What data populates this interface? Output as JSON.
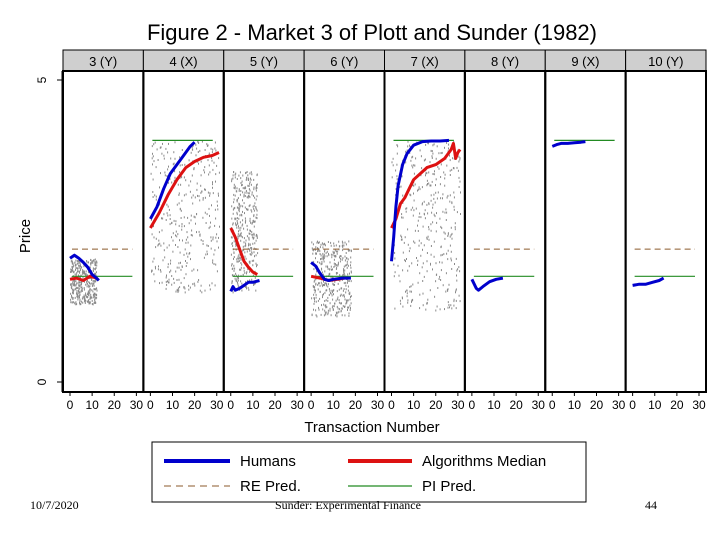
{
  "chart_data": {
    "type": "line",
    "title": "Figure 2 - Market 3 of Plott and Sunder (1982)",
    "xlabel": "Transaction Number",
    "ylabel": "Price",
    "ylim": [
      0,
      5
    ],
    "y_ticks": [
      "0",
      "5"
    ],
    "x_ticks": [
      "0",
      "10",
      "20",
      "30"
    ],
    "xlim": [
      0,
      30
    ],
    "grid": false,
    "legend_position": "bottom",
    "legend": [
      {
        "key": "humans",
        "label": "Humans",
        "color": "#0000cc",
        "style": "solid-thick"
      },
      {
        "key": "algorithms",
        "label": "Algorithms Median",
        "color": "#dd1111",
        "style": "solid-thick"
      },
      {
        "key": "re",
        "label": "RE Pred.",
        "color": "#8b5a2b",
        "style": "dashed"
      },
      {
        "key": "pi",
        "label": "PI Pred.",
        "color": "#228b22",
        "style": "solid-thin"
      }
    ],
    "panels": [
      {
        "label": "3 (Y)",
        "re_pred": 2.2,
        "pi_pred": 1.75,
        "humans": [
          [
            0,
            2.05
          ],
          [
            2,
            2.1
          ],
          [
            4,
            2.05
          ],
          [
            6,
            1.98
          ],
          [
            8,
            1.9
          ],
          [
            10,
            1.78
          ],
          [
            12,
            1.72
          ],
          [
            13,
            1.68
          ]
        ],
        "algorithms": [
          [
            0,
            1.7
          ],
          [
            3,
            1.72
          ],
          [
            6,
            1.68
          ],
          [
            9,
            1.75
          ],
          [
            12,
            1.72
          ]
        ],
        "cloud": [
          0,
          12,
          1.3,
          2.05
        ]
      },
      {
        "label": "4 (X)",
        "re_pred": null,
        "pi_pred": 4.0,
        "humans": [
          [
            0,
            2.7
          ],
          [
            3,
            2.9
          ],
          [
            6,
            3.2
          ],
          [
            9,
            3.45
          ],
          [
            12,
            3.6
          ],
          [
            15,
            3.75
          ],
          [
            18,
            3.9
          ],
          [
            20,
            3.97
          ]
        ],
        "algorithms": [
          [
            0,
            2.55
          ],
          [
            4,
            2.8
          ],
          [
            8,
            3.1
          ],
          [
            12,
            3.35
          ],
          [
            16,
            3.55
          ],
          [
            20,
            3.65
          ],
          [
            24,
            3.72
          ],
          [
            28,
            3.75
          ],
          [
            31,
            3.8
          ]
        ],
        "cloud": [
          0,
          31,
          1.5,
          4.0
        ]
      },
      {
        "label": "5 (Y)",
        "re_pred": 2.2,
        "pi_pred": 1.75,
        "humans": [
          [
            0,
            1.5
          ],
          [
            1,
            1.58
          ],
          [
            2,
            1.52
          ],
          [
            4,
            1.55
          ],
          [
            6,
            1.6
          ],
          [
            8,
            1.65
          ],
          [
            10,
            1.65
          ],
          [
            13,
            1.68
          ]
        ],
        "algorithms": [
          [
            0,
            2.55
          ],
          [
            2,
            2.4
          ],
          [
            4,
            2.2
          ],
          [
            6,
            2.0
          ],
          [
            8,
            1.9
          ],
          [
            10,
            1.82
          ],
          [
            12,
            1.78
          ]
        ],
        "cloud": [
          0,
          12,
          1.5,
          3.5
        ]
      },
      {
        "label": "6 (Y)",
        "re_pred": 2.2,
        "pi_pred": 1.75,
        "humans": [
          [
            0,
            1.98
          ],
          [
            2,
            1.92
          ],
          [
            4,
            1.8
          ],
          [
            6,
            1.7
          ],
          [
            8,
            1.68
          ],
          [
            10,
            1.7
          ],
          [
            14,
            1.72
          ],
          [
            18,
            1.72
          ]
        ],
        "algorithms": [
          [
            0,
            1.75
          ],
          [
            4,
            1.72
          ],
          [
            8,
            1.68
          ],
          [
            12,
            1.7
          ],
          [
            15,
            1.72
          ]
        ],
        "cloud": [
          0,
          18,
          1.1,
          2.35
        ]
      },
      {
        "label": "7 (X)",
        "re_pred": null,
        "pi_pred": 4.0,
        "humans": [
          [
            0,
            2.0
          ],
          [
            1,
            2.4
          ],
          [
            2,
            2.9
          ],
          [
            3,
            3.25
          ],
          [
            5,
            3.6
          ],
          [
            7,
            3.78
          ],
          [
            10,
            3.92
          ],
          [
            14,
            3.98
          ],
          [
            18,
            3.99
          ],
          [
            22,
            3.99
          ],
          [
            26,
            4.0
          ]
        ],
        "algorithms": [
          [
            0,
            2.55
          ],
          [
            2,
            2.7
          ],
          [
            4,
            2.95
          ],
          [
            6,
            3.05
          ],
          [
            8,
            3.2
          ],
          [
            10,
            3.35
          ],
          [
            13,
            3.45
          ],
          [
            16,
            3.55
          ],
          [
            20,
            3.6
          ],
          [
            24,
            3.7
          ],
          [
            27,
            3.85
          ],
          [
            28,
            3.95
          ],
          [
            29,
            3.7
          ],
          [
            30,
            3.8
          ],
          [
            31,
            3.85
          ]
        ],
        "cloud": [
          0,
          31,
          1.2,
          4.0
        ]
      },
      {
        "label": "8 (Y)",
        "re_pred": 2.2,
        "pi_pred": 1.75,
        "humans": [
          [
            0,
            1.7
          ],
          [
            2,
            1.55
          ],
          [
            3,
            1.52
          ],
          [
            5,
            1.58
          ],
          [
            8,
            1.66
          ],
          [
            11,
            1.7
          ],
          [
            14,
            1.72
          ]
        ],
        "algorithms": [],
        "cloud": null
      },
      {
        "label": "9 (X)",
        "re_pred": null,
        "pi_pred": 4.0,
        "humans": [
          [
            0,
            3.9
          ],
          [
            2,
            3.93
          ],
          [
            4,
            3.95
          ],
          [
            7,
            3.95
          ],
          [
            10,
            3.96
          ],
          [
            13,
            3.97
          ],
          [
            15,
            3.98
          ]
        ],
        "algorithms": [],
        "cloud": null
      },
      {
        "label": "10 (Y)",
        "re_pred": 2.2,
        "pi_pred": 1.75,
        "humans": [
          [
            0,
            1.6
          ],
          [
            3,
            1.62
          ],
          [
            6,
            1.62
          ],
          [
            9,
            1.65
          ],
          [
            12,
            1.68
          ],
          [
            14,
            1.72
          ]
        ],
        "algorithms": [],
        "cloud": null
      }
    ]
  },
  "footer": {
    "date": "10/7/2020",
    "source": "Sunder: Experimental Finance",
    "page": "44"
  }
}
